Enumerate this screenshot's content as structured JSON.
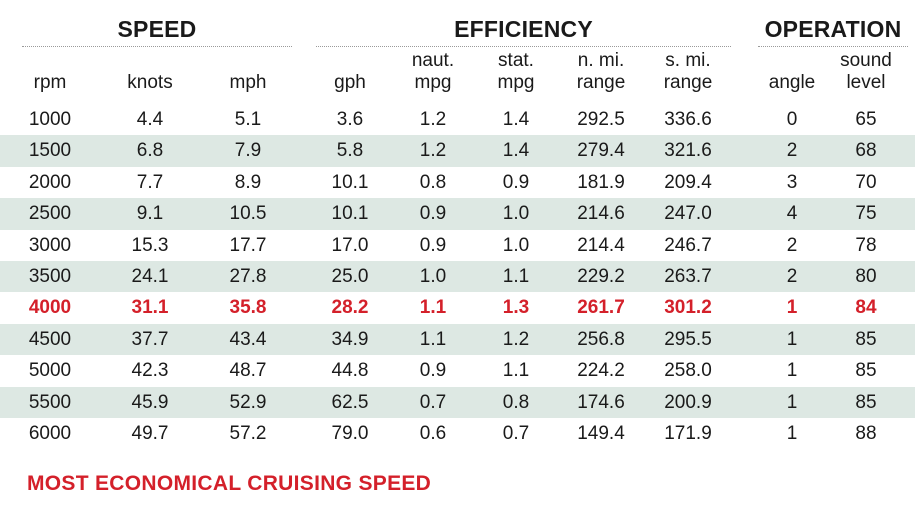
{
  "groups": {
    "speed": "SPEED",
    "efficiency": "EFFICIENCY",
    "operation": "OPERATION"
  },
  "columns": [
    {
      "key": "rpm",
      "label": "rpm"
    },
    {
      "key": "knots",
      "label": "knots"
    },
    {
      "key": "mph",
      "label": "mph"
    },
    {
      "key": "gph",
      "label": "gph"
    },
    {
      "key": "naut_mpg",
      "label": "naut.\nmpg"
    },
    {
      "key": "stat_mpg",
      "label": "stat.\nmpg"
    },
    {
      "key": "n_mi_range",
      "label": "n. mi.\nrange"
    },
    {
      "key": "s_mi_range",
      "label": "s. mi.\nrange"
    },
    {
      "key": "angle",
      "label": "angle"
    },
    {
      "key": "sound_level",
      "label": "sound\nlevel"
    }
  ],
  "rows": [
    [
      "1000",
      "4.4",
      "5.1",
      "3.6",
      "1.2",
      "1.4",
      "292.5",
      "336.6",
      "0",
      "65"
    ],
    [
      "1500",
      "6.8",
      "7.9",
      "5.8",
      "1.2",
      "1.4",
      "279.4",
      "321.6",
      "2",
      "68"
    ],
    [
      "2000",
      "7.7",
      "8.9",
      "10.1",
      "0.8",
      "0.9",
      "181.9",
      "209.4",
      "3",
      "70"
    ],
    [
      "2500",
      "9.1",
      "10.5",
      "10.1",
      "0.9",
      "1.0",
      "214.6",
      "247.0",
      "4",
      "75"
    ],
    [
      "3000",
      "15.3",
      "17.7",
      "17.0",
      "0.9",
      "1.0",
      "214.4",
      "246.7",
      "2",
      "78"
    ],
    [
      "3500",
      "24.1",
      "27.8",
      "25.0",
      "1.0",
      "1.1",
      "229.2",
      "263.7",
      "2",
      "80"
    ],
    [
      "4000",
      "31.1",
      "35.8",
      "28.2",
      "1.1",
      "1.3",
      "261.7",
      "301.2",
      "1",
      "84"
    ],
    [
      "4500",
      "37.7",
      "43.4",
      "34.9",
      "1.1",
      "1.2",
      "256.8",
      "295.5",
      "1",
      "85"
    ],
    [
      "5000",
      "42.3",
      "48.7",
      "44.8",
      "0.9",
      "1.1",
      "224.2",
      "258.0",
      "1",
      "85"
    ],
    [
      "5500",
      "45.9",
      "52.9",
      "62.5",
      "0.7",
      "0.8",
      "174.6",
      "200.9",
      "1",
      "85"
    ],
    [
      "6000",
      "49.7",
      "57.2",
      "79.0",
      "0.6",
      "0.7",
      "149.4",
      "171.9",
      "1",
      "88"
    ]
  ],
  "highlight_row_index": 6,
  "footnote": "MOST ECONOMICAL CRUISING SPEED",
  "colors": {
    "highlight": "#d4202a",
    "stripe": "#dde8e3",
    "text": "#1a1a1a"
  }
}
